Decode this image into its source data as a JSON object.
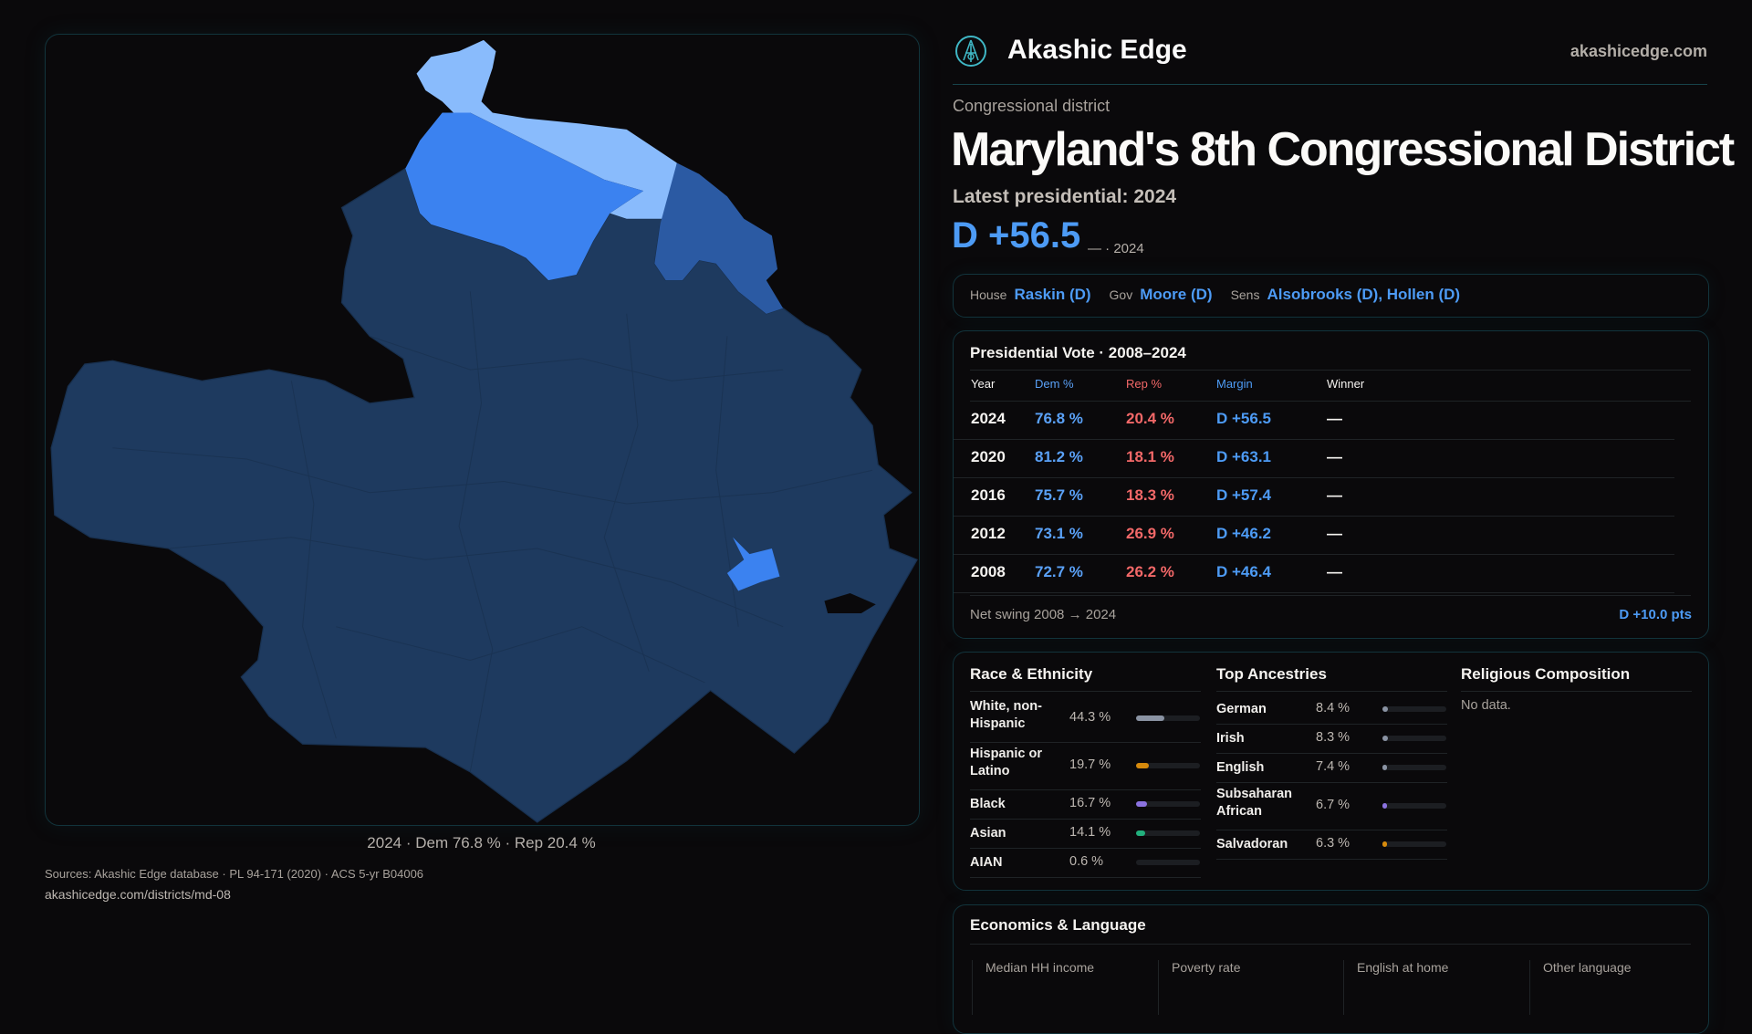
{
  "brand": {
    "name": "Akashic Edge",
    "site": "akashicedge.com",
    "logo_icon": "akashic-compass-logo"
  },
  "map": {
    "caption": "2024 · Dem 76.8 % · Rep 20.4 %",
    "colors": {
      "safe_dem": "#1e3a5f",
      "likely_dem": "#2b5aa3",
      "lean_dem": "#3b82f0",
      "tossup_light": "#89bbfc",
      "border": "#12343c"
    }
  },
  "district": {
    "kicker": "Congressional district",
    "title": "Maryland's 8th Congressional District",
    "latest_label": "Latest presidential: 2024",
    "margin": "D +56.5",
    "margin_sub": "— · 2024"
  },
  "officials": {
    "house_label": "House",
    "house": "Raskin (D)",
    "gov_label": "Gov",
    "gov": "Moore (D)",
    "sens_label": "Sens",
    "sens": "Alsobrooks (D), Hollen (D)"
  },
  "presidential": {
    "title": "Presidential Vote · 2008–2024",
    "headers": [
      "Year",
      "Dem %",
      "Rep %",
      "Margin",
      "Winner"
    ],
    "rows": [
      {
        "year": "2024",
        "dem": "76.8 %",
        "rep": "20.4 %",
        "margin": "D +56.5",
        "winner": "—"
      },
      {
        "year": "2020",
        "dem": "81.2 %",
        "rep": "18.1 %",
        "margin": "D +63.1",
        "winner": "—"
      },
      {
        "year": "2016",
        "dem": "75.7 %",
        "rep": "18.3 %",
        "margin": "D +57.4",
        "winner": "—"
      },
      {
        "year": "2012",
        "dem": "73.1 %",
        "rep": "26.9 %",
        "margin": "D +46.2",
        "winner": "—"
      },
      {
        "year": "2008",
        "dem": "72.7 %",
        "rep": "26.2 %",
        "margin": "D +46.4",
        "winner": "—"
      }
    ],
    "swing_label": "Net swing 2008 → 2024",
    "swing_value": "D +10.0 pts"
  },
  "race": {
    "title": "Race & Ethnicity",
    "items": [
      {
        "label": "White, non-Hispanic",
        "value": "44.3 %",
        "pct": 44.3,
        "color": "#8a93a3"
      },
      {
        "label": "Hispanic or Latino",
        "value": "19.7 %",
        "pct": 19.7,
        "color": "#d68a0c"
      },
      {
        "label": "Black",
        "value": "16.7 %",
        "pct": 16.7,
        "color": "#8b72e0"
      },
      {
        "label": "Asian",
        "value": "14.1 %",
        "pct": 14.1,
        "color": "#22b07d"
      },
      {
        "label": "AIAN",
        "value": "0.6 %",
        "pct": 0.6,
        "color": "#6b7280"
      }
    ]
  },
  "ancestry": {
    "title": "Top Ancestries",
    "items": [
      {
        "label": "German",
        "value": "8.4 %",
        "pct": 8.4,
        "color": "#8a93a3"
      },
      {
        "label": "Irish",
        "value": "8.3 %",
        "pct": 8.3,
        "color": "#8a93a3"
      },
      {
        "label": "English",
        "value": "7.4 %",
        "pct": 7.4,
        "color": "#8a93a3"
      },
      {
        "label": "Subsaharan African",
        "value": "6.7 %",
        "pct": 6.7,
        "color": "#8b72e0"
      },
      {
        "label": "Salvadoran",
        "value": "6.3 %",
        "pct": 6.3,
        "color": "#d68a0c"
      }
    ]
  },
  "religion": {
    "title": "Religious Composition",
    "empty": "No data."
  },
  "economics": {
    "title": "Economics & Language",
    "stats": [
      "Median HH income",
      "Poverty rate",
      "English at home",
      "Other language"
    ]
  },
  "footer": {
    "source": "Sources: Akashic Edge database · PL 94-171 (2020) · ACS 5-yr B04006",
    "url": "akashicedge.com/districts/md-08"
  }
}
